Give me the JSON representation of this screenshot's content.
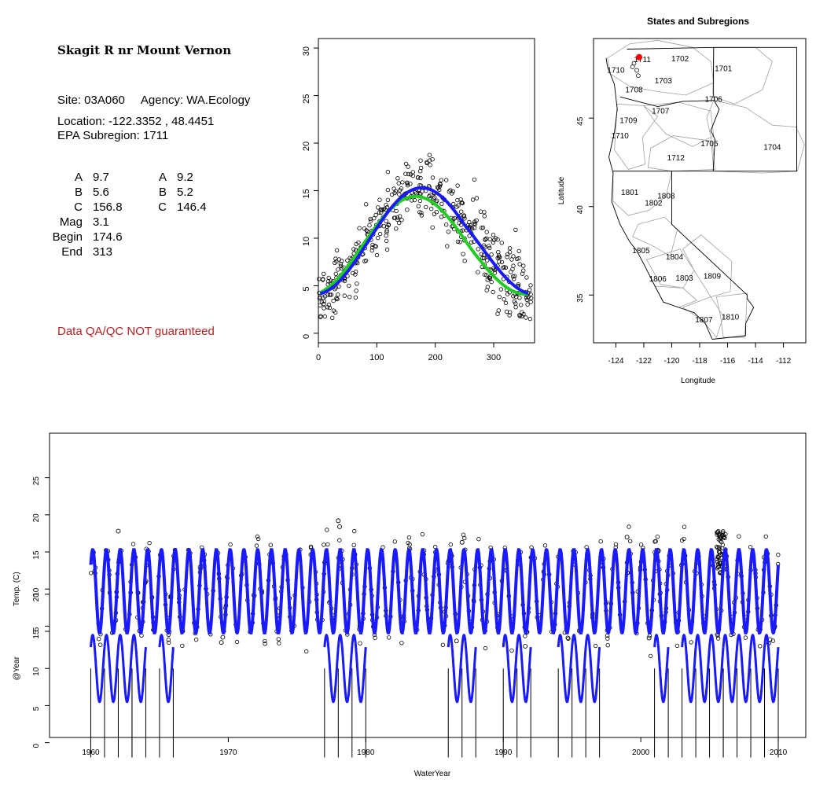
{
  "site": {
    "title": "Skagit R nr Mount Vernon",
    "site_line": "Site: 03A060     Agency: WA.Ecology",
    "location_line": "Location: -122.3352 , 48.4451",
    "subregion_line": "EPA Subregion: 1711",
    "params_left": [
      {
        "label": "A",
        "value": "9.7"
      },
      {
        "label": "B",
        "value": "5.6"
      },
      {
        "label": "C",
        "value": "156.8"
      },
      {
        "label": "Mag",
        "value": "3.1"
      },
      {
        "label": "Begin",
        "value": "174.6"
      },
      {
        "label": "End",
        "value": "313"
      }
    ],
    "params_right": [
      {
        "label": "A",
        "value": "9.2"
      },
      {
        "label": "B",
        "value": "5.2"
      },
      {
        "label": "C",
        "value": "146.4"
      }
    ],
    "qa_note": "Data QA/QC NOT guaranteed"
  },
  "colors": {
    "points": "#000000",
    "fit_blue": "#1a1aff",
    "fit_green": "#22cc22",
    "qa_red": "#b22222",
    "site_marker": "#ff0000",
    "boundary_gray": "#a0a0a0"
  },
  "chart_data": [
    {
      "type": "scatter",
      "title": "",
      "xlabel": "",
      "ylabel": "",
      "xlim": [
        0,
        370
      ],
      "ylim": [
        -1,
        31
      ],
      "xticks": [
        0,
        100,
        200,
        300
      ],
      "yticks": [
        0,
        5,
        10,
        15,
        20,
        25,
        30
      ],
      "fits": [
        {
          "color": "blue",
          "A": 9.7,
          "B": 5.6,
          "C": 156.8,
          "Mag": 3.1,
          "Begin": 174.6,
          "End": 313
        },
        {
          "color": "green",
          "A": 9.2,
          "B": 5.2,
          "C": 146.4
        }
      ],
      "observations": {
        "approx_count": 450,
        "x_range": [
          0,
          365
        ],
        "noise_sd": 1.6
      }
    },
    {
      "type": "map",
      "title": "States and Subregions",
      "xlabel": "Longitude",
      "ylabel": "Latitude",
      "xlim": [
        -125.6,
        -110.4
      ],
      "ylim": [
        32.3,
        49.5
      ],
      "xticks": [
        -124,
        -122,
        -120,
        -118,
        -116,
        -114,
        -112
      ],
      "yticks": [
        35,
        40,
        45
      ],
      "site": {
        "lon": -122.3352,
        "lat": 48.4451
      },
      "subregions": [
        {
          "label": "1711",
          "lon": -122.1,
          "lat": 48.3
        },
        {
          "label": "1702",
          "lon": -119.4,
          "lat": 48.35
        },
        {
          "label": "1701",
          "lon": -116.3,
          "lat": 47.8
        },
        {
          "label": "1710",
          "lon": -124.0,
          "lat": 47.7
        },
        {
          "label": "1703",
          "lon": -120.6,
          "lat": 47.1
        },
        {
          "label": "1708",
          "lon": -122.7,
          "lat": 46.6
        },
        {
          "label": "1706",
          "lon": -117.0,
          "lat": 46.05
        },
        {
          "label": "1707",
          "lon": -120.8,
          "lat": 45.4
        },
        {
          "label": "1709",
          "lon": -123.1,
          "lat": 44.85
        },
        {
          "label": "1710",
          "lon": -123.7,
          "lat": 44.0
        },
        {
          "label": "1705",
          "lon": -117.3,
          "lat": 43.55
        },
        {
          "label": "1704",
          "lon": -112.8,
          "lat": 43.35
        },
        {
          "label": "1712",
          "lon": -119.7,
          "lat": 42.75
        },
        {
          "label": "1801",
          "lon": -123.0,
          "lat": 40.8
        },
        {
          "label": "1808",
          "lon": -120.4,
          "lat": 40.6
        },
        {
          "label": "1802",
          "lon": -121.3,
          "lat": 40.2
        },
        {
          "label": "1805",
          "lon": -122.2,
          "lat": 37.5
        },
        {
          "label": "1804",
          "lon": -119.8,
          "lat": 37.15
        },
        {
          "label": "1806",
          "lon": -121.0,
          "lat": 35.9
        },
        {
          "label": "1803",
          "lon": -119.1,
          "lat": 35.95
        },
        {
          "label": "1809",
          "lon": -117.1,
          "lat": 36.05
        },
        {
          "label": "1807",
          "lon": -117.7,
          "lat": 33.6
        },
        {
          "label": "1810",
          "lon": -115.8,
          "lat": 33.75
        }
      ]
    },
    {
      "type": "scatter",
      "title": "",
      "xlabel": "WaterYear",
      "ylabel": "Temp. (C)",
      "ylabel2": "@Year",
      "xlim": [
        1957,
        2012
      ],
      "ylim": [
        -10,
        31
      ],
      "xticks": [
        1960,
        1970,
        1980,
        1990,
        2000,
        2010
      ],
      "yticks": [
        5,
        10,
        15,
        20,
        25
      ],
      "yticks2": [
        0,
        5,
        10,
        15,
        20
      ],
      "seasonal": {
        "mean": 9.7,
        "amplitude": 5.6,
        "range": [
          1960,
          2010
        ]
      },
      "outliers": [
        {
          "x": 1962.0,
          "y": 17.8
        },
        {
          "x": 1978.0,
          "y": 19.2
        },
        {
          "x": 1978.1,
          "y": 18.4
        },
        {
          "x": 1969.5,
          "y": 2.8
        },
        {
          "x": 1969.6,
          "y": 3.5
        },
        {
          "x": 1987.0,
          "y": 16.3
        },
        {
          "x": 1991.6,
          "y": 2.3
        },
        {
          "x": 1999.0,
          "y": 17.0
        },
        {
          "x": 2000.6,
          "y": 3.4
        },
        {
          "x": 1986.6,
          "y": 3.0
        },
        {
          "x": 2009.3,
          "y": 2.7
        },
        {
          "x": 2009.4,
          "y": 3.2
        }
      ],
      "year_segments": [
        [
          1960,
          1963
        ],
        [
          1963,
          1964
        ],
        [
          1965,
          1966
        ],
        [
          1977,
          1980
        ],
        [
          1986,
          1988
        ],
        [
          1990,
          1992
        ],
        [
          1994,
          1997
        ],
        [
          2001,
          2002
        ],
        [
          2003,
          2006
        ],
        [
          2006,
          2009
        ],
        [
          2009,
          2010
        ]
      ]
    }
  ]
}
